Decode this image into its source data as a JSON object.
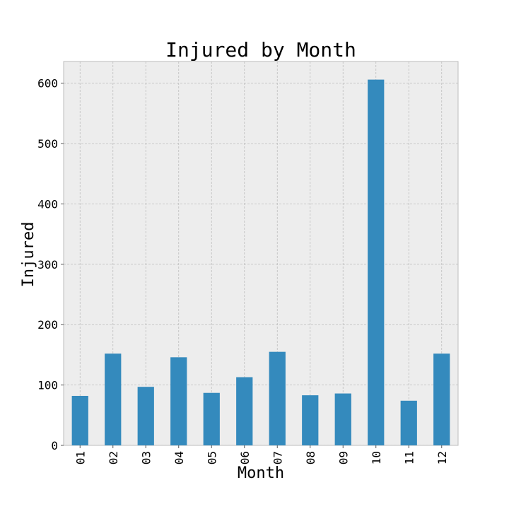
{
  "chart_data": {
    "type": "bar",
    "title": "Injured by Month",
    "xlabel": "Month",
    "ylabel": "Injured",
    "categories": [
      "01",
      "02",
      "03",
      "04",
      "05",
      "06",
      "07",
      "08",
      "09",
      "10",
      "11",
      "12"
    ],
    "values": [
      82,
      152,
      97,
      146,
      87,
      113,
      155,
      83,
      86,
      606,
      74,
      152
    ],
    "ylim": [
      0,
      636
    ],
    "yticks": [
      0,
      100,
      200,
      300,
      400,
      500,
      600
    ],
    "grid": true,
    "bar_color": "#348abd",
    "background_color": "#ededed"
  }
}
